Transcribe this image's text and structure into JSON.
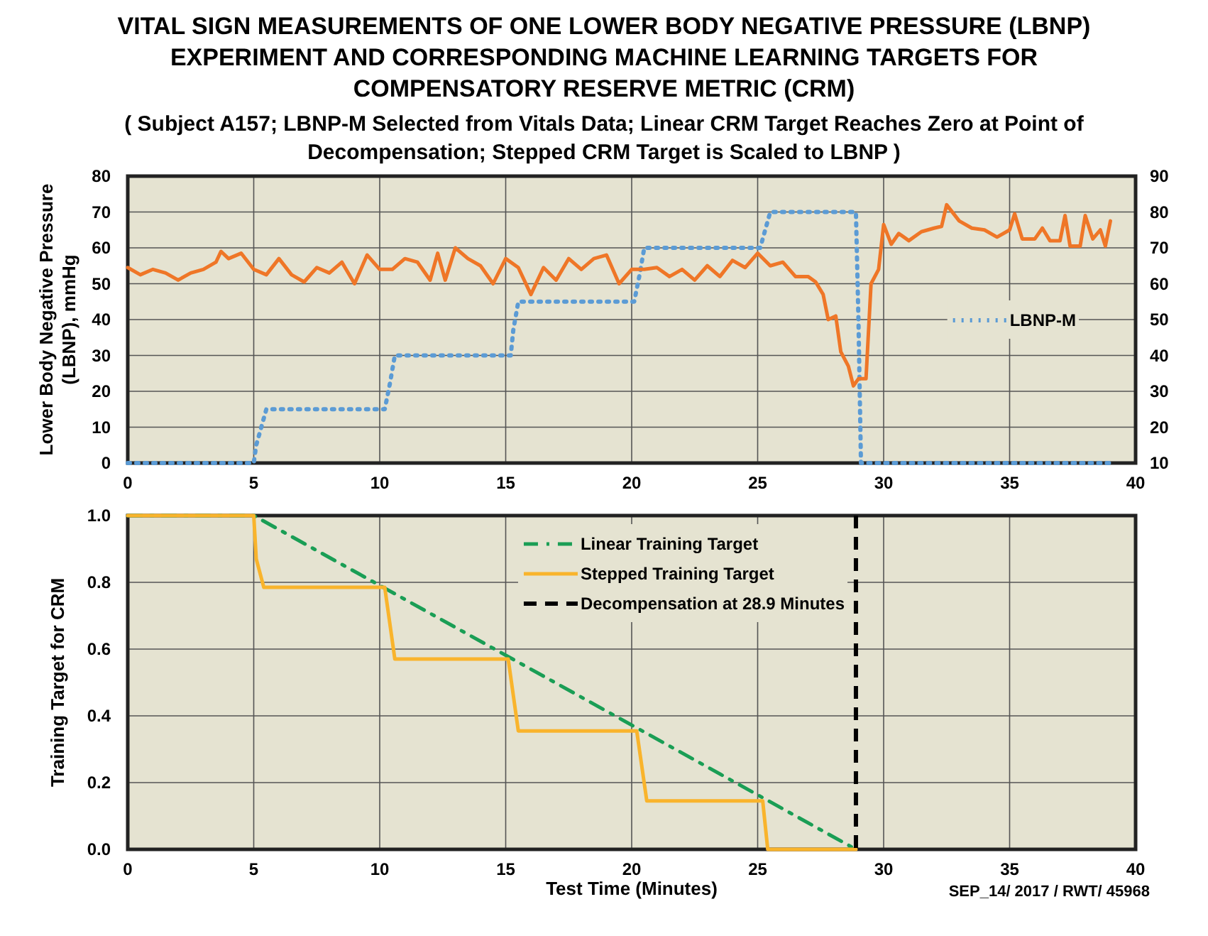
{
  "chart_data": [
    {
      "type": "line",
      "title": "VITAL SIGN MEASUREMENTS OF ONE LOWER BODY NEGATIVE PRESSURE (LBNP) EXPERIMENT AND CORRESPONDING MACHINE LEARNING TARGETS FOR COMPENSATORY RESERVE METRIC (CRM)",
      "subtitle": "( Subject A157; LBNP-M Selected from Vitals Data; Linear CRM Target Reaches Zero at Point of Decompensation; Stepped CRM Target is Scaled to LBNP )",
      "ylabel": "Lower Body Negative Pressure (LBNP), mmHg",
      "xlim": [
        0,
        40
      ],
      "xticks": [
        0,
        5,
        10,
        15,
        20,
        25,
        30,
        35,
        40
      ],
      "ylim": [
        0,
        80
      ],
      "yticks": [
        0,
        10,
        20,
        30,
        40,
        50,
        60,
        70,
        80
      ],
      "y2lim": [
        10,
        90
      ],
      "y2ticks": [
        10,
        20,
        30,
        40,
        50,
        60,
        70,
        80,
        90
      ],
      "grid": true,
      "legend": "right",
      "marker": "none",
      "series": [
        {
          "name": "LBNP-M",
          "color": "#5b9bd5",
          "line_style": "dotted",
          "x": [
            0,
            5,
            5.1,
            5.3,
            5.5,
            10.2,
            10.4,
            10.6,
            15.2,
            15.3,
            15.5,
            20.1,
            20.3,
            20.5,
            25.1,
            25.3,
            25.5,
            28.9,
            29,
            29.1,
            39
          ],
          "values": [
            0,
            0,
            5,
            10,
            15,
            15,
            22,
            30,
            30,
            37,
            45,
            45,
            52,
            60,
            60,
            65,
            70,
            70,
            40,
            0,
            0
          ]
        },
        {
          "color": "#ef7627",
          "axis": "y2",
          "line_style": "solid",
          "x": [
            0,
            0.5,
            1,
            1.5,
            2,
            2.5,
            3,
            3.5,
            3.7,
            4,
            4.5,
            5,
            5.5,
            6,
            6.5,
            7,
            7.5,
            8,
            8.5,
            9,
            9.5,
            10,
            10.5,
            11,
            11.5,
            12,
            12.3,
            12.6,
            13,
            13.5,
            14,
            14.5,
            15,
            15.5,
            16,
            16.5,
            17,
            17.5,
            18,
            18.5,
            19,
            19.5,
            20,
            20.5,
            21,
            21.5,
            22,
            22.5,
            23,
            23.5,
            24,
            24.5,
            25,
            25.5,
            26,
            26.5,
            27,
            27.3,
            27.6,
            27.8,
            28.1,
            28.3,
            28.6,
            28.8,
            29,
            29.3,
            29.5,
            29.8,
            30,
            30.3,
            30.6,
            31,
            31.5,
            32,
            32.3,
            32.5,
            33,
            33.5,
            34,
            34.5,
            35,
            35.2,
            35.5,
            36,
            36.3,
            36.6,
            37,
            37.2,
            37.4,
            37.8,
            38,
            38.3,
            38.6,
            38.8,
            39
          ],
          "values": [
            64.5,
            62.5,
            64,
            63,
            61,
            63,
            64,
            66,
            69,
            67,
            68.5,
            64,
            62.5,
            67,
            62.5,
            60.5,
            64.5,
            63,
            66,
            60,
            68,
            64,
            64,
            67,
            66,
            61,
            68.5,
            61,
            70,
            67,
            65,
            60,
            67,
            64.5,
            57,
            64.5,
            61,
            67,
            64,
            67,
            68,
            60,
            64,
            64,
            64.5,
            62,
            64,
            61,
            65,
            62,
            66.5,
            64.5,
            68.5,
            65,
            66,
            62,
            62,
            60.5,
            57,
            50,
            51,
            41,
            37,
            31.5,
            33.5,
            33.5,
            60,
            64,
            76.5,
            71,
            74,
            72,
            74.5,
            75.5,
            76,
            82,
            77.5,
            75.5,
            75,
            73,
            75,
            79.5,
            72.5,
            72.5,
            75.5,
            72,
            72,
            79,
            70.5,
            70.5,
            79,
            72.5,
            75,
            70.5,
            77.5
          ]
        }
      ]
    },
    {
      "type": "line",
      "xlabel": "Test Time (Minutes)",
      "ylabel": "Training Target for CRM",
      "xlim": [
        0,
        40
      ],
      "xticks": [
        0,
        5,
        10,
        15,
        20,
        25,
        30,
        35,
        40
      ],
      "ylim": [
        0,
        1
      ],
      "yticks": [
        {
          "value": 0,
          "label": "0.0"
        },
        {
          "value": 0.2,
          "label": "0.2"
        },
        {
          "value": 0.4,
          "label": "0.4"
        },
        {
          "value": 0.6,
          "label": "0.6"
        },
        {
          "value": 0.8,
          "label": "0.8"
        },
        {
          "value": 1,
          "label": "1.0"
        }
      ],
      "grid": true,
      "legend": "top",
      "marker": "none",
      "annotations": [
        "SEP_14/ 2017 / RWT/ 45968"
      ],
      "ref_lines": [
        {
          "axis": "x",
          "value": 28.9,
          "label": "Decompensation at 28.9 Minutes",
          "color": "#000000",
          "line_style": "dashed"
        }
      ],
      "series": [
        {
          "name": "Linear Training Target",
          "color": "#1a9e55",
          "line_style": "dashed",
          "x": [
            0,
            5,
            28.9
          ],
          "values": [
            1,
            1,
            0
          ]
        },
        {
          "name": "Stepped Training Target",
          "color": "#f9b42c",
          "line_style": "solid",
          "x": [
            0,
            5,
            5.1,
            5.4,
            10.2,
            10.6,
            15.1,
            15.5,
            20.2,
            20.6,
            25.2,
            25.4,
            28.9
          ],
          "values": [
            1,
            1,
            0.87,
            0.785,
            0.785,
            0.57,
            0.57,
            0.355,
            0.355,
            0.145,
            0.145,
            0,
            0
          ]
        }
      ]
    }
  ]
}
